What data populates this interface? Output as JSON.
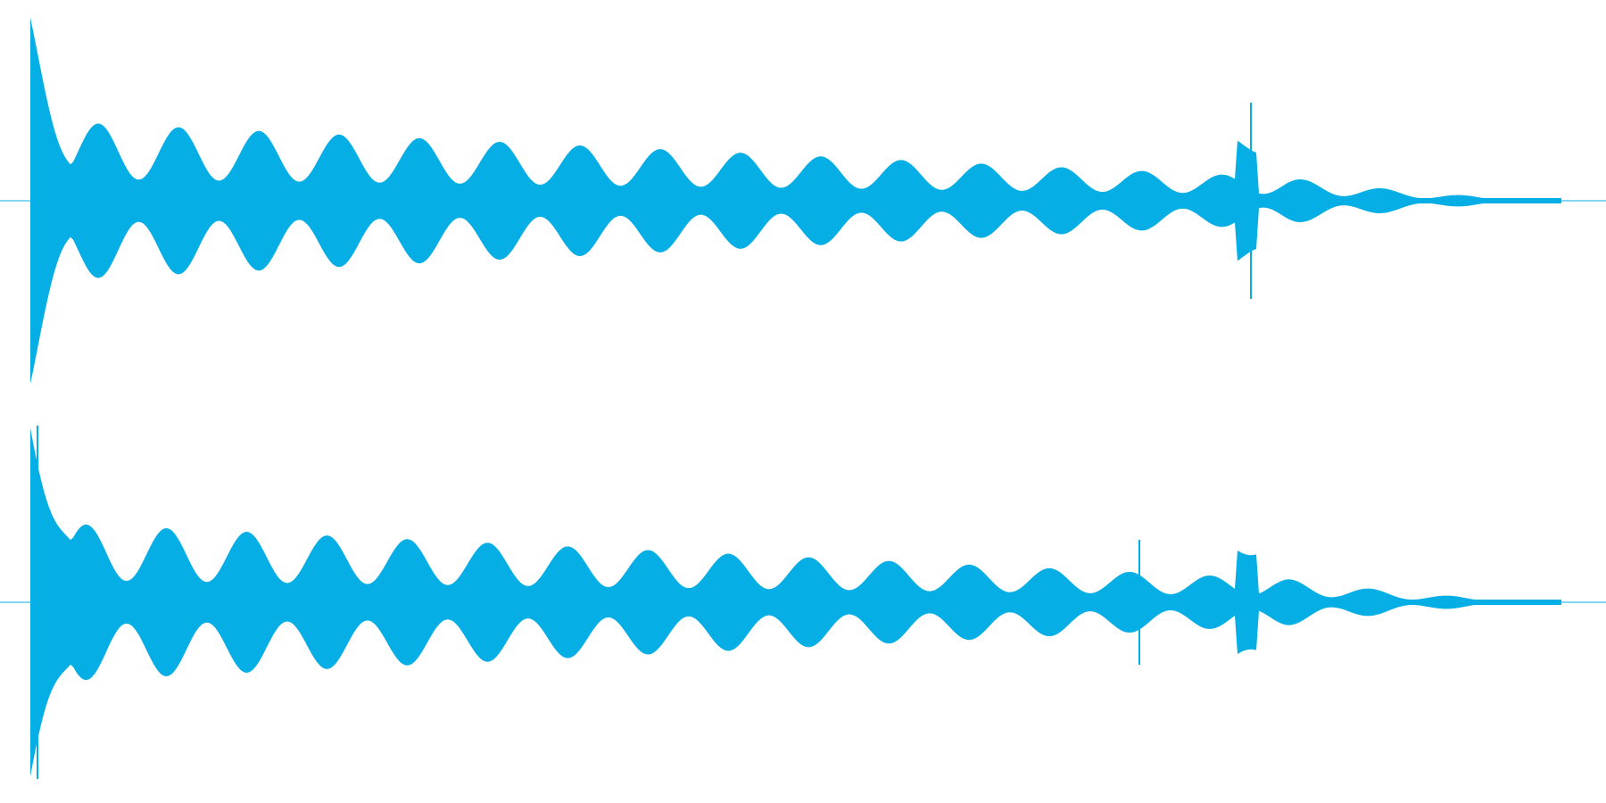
{
  "waveform": {
    "color": "#05aee4",
    "channels": [
      {
        "id": "left"
      },
      {
        "id": "right"
      }
    ]
  }
}
